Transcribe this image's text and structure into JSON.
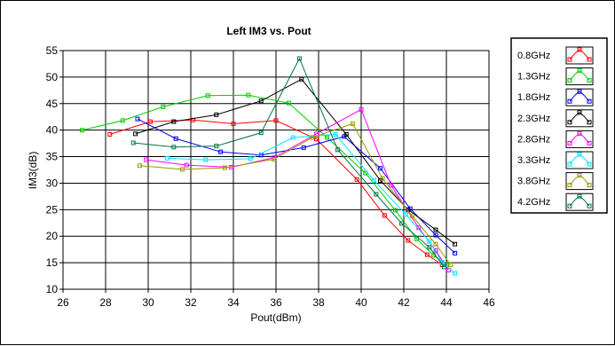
{
  "chart_data": {
    "type": "line",
    "title": "Left IM3 vs. Pout",
    "xlabel": "Pout(dBm)",
    "ylabel": "IM3(dB)",
    "xlim": [
      26,
      46
    ],
    "ylim": [
      10,
      55
    ],
    "xticks": [
      26,
      28,
      30,
      32,
      34,
      36,
      38,
      40,
      42,
      44,
      46
    ],
    "yticks": [
      10,
      15,
      20,
      25,
      30,
      35,
      40,
      45,
      50,
      55
    ],
    "grid": true,
    "legend_position": "right",
    "series": [
      {
        "name": "0.8GHz",
        "color": "#ff0000",
        "x": [
          28.2,
          30.1,
          32.1,
          34.0,
          36.0,
          37.9,
          39.8,
          41.1,
          42.2,
          43.1,
          43.8
        ],
        "y": [
          39.2,
          41.6,
          41.9,
          41.2,
          41.8,
          38.3,
          30.7,
          23.9,
          19.2,
          16.5,
          14.6
        ]
      },
      {
        "name": "1.3GHz",
        "color": "#00cc00",
        "x": [
          26.9,
          28.8,
          30.7,
          32.8,
          34.7,
          36.6,
          38.4,
          40.2,
          41.6,
          42.6,
          43.4,
          44.0
        ],
        "y": [
          40.0,
          41.8,
          44.4,
          46.5,
          46.6,
          45.1,
          38.6,
          31.9,
          24.9,
          19.5,
          16.4,
          14.6
        ]
      },
      {
        "name": "1.8GHz",
        "color": "#0000ff",
        "x": [
          29.5,
          31.3,
          33.4,
          35.3,
          37.3,
          39.2,
          40.9,
          42.3,
          43.5,
          44.4
        ],
        "y": [
          42.1,
          38.4,
          35.9,
          35.3,
          36.7,
          38.8,
          32.8,
          25.2,
          20.2,
          16.8
        ]
      },
      {
        "name": "2.3GHz",
        "color": "#000000",
        "x": [
          29.4,
          31.2,
          33.2,
          35.3,
          37.2,
          39.3,
          40.9,
          42.2,
          43.5,
          44.4
        ],
        "y": [
          39.3,
          41.6,
          42.9,
          45.5,
          49.6,
          39.2,
          30.5,
          25.0,
          21.2,
          18.5
        ]
      },
      {
        "name": "2.8GHz",
        "color": "#ff00ff",
        "x": [
          29.9,
          31.8,
          33.9,
          35.9,
          37.9,
          40.0,
          41.4,
          42.7,
          43.5,
          44.1
        ],
        "y": [
          34.4,
          33.4,
          33.0,
          34.8,
          39.3,
          43.9,
          29.6,
          21.6,
          17.3,
          13.6
        ]
      },
      {
        "name": "3.3GHz",
        "color": "#00e5ff",
        "x": [
          30.9,
          32.7,
          34.8,
          36.8,
          38.8,
          40.6,
          42.1,
          43.2,
          43.8,
          44.4
        ],
        "y": [
          34.7,
          34.4,
          34.6,
          38.6,
          39.2,
          30.5,
          24.1,
          19.0,
          15.1,
          13.0
        ]
      },
      {
        "name": "3.8GHz",
        "color": "#999900",
        "x": [
          29.6,
          31.6,
          33.6,
          35.9,
          37.7,
          39.6,
          41.0,
          42.4,
          43.5,
          44.2
        ],
        "y": [
          33.3,
          32.6,
          32.9,
          34.5,
          38.6,
          41.2,
          30.9,
          23.8,
          18.5,
          14.6
        ]
      },
      {
        "name": "4.2GHz",
        "color": "#007744",
        "x": [
          29.3,
          31.2,
          33.2,
          35.3,
          37.1,
          38.9,
          40.7,
          41.9,
          43.2,
          43.9
        ],
        "y": [
          37.6,
          36.8,
          37.0,
          39.5,
          53.5,
          36.3,
          27.9,
          22.4,
          17.9,
          14.2
        ]
      }
    ]
  }
}
